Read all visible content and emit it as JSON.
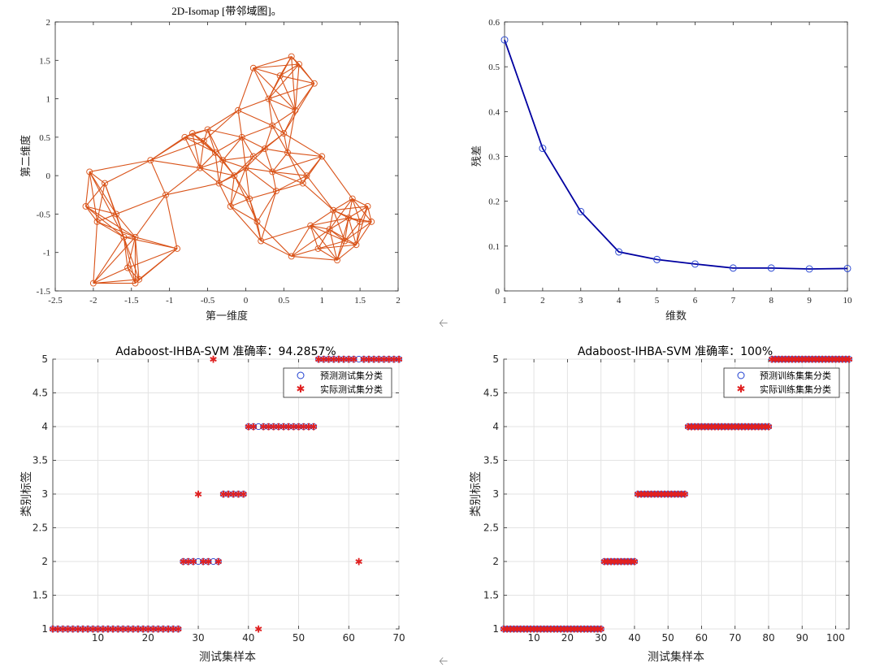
{
  "chart_data": [
    {
      "type": "network-scatter",
      "title": "2D-Isomap [带邻域图]。",
      "xlabel": "第一维度",
      "ylabel": "第二维度",
      "xlim": [
        -2.5,
        2
      ],
      "ylim": [
        -1.5,
        2
      ],
      "xticks": [
        "-2.5",
        "-2",
        "-1.5",
        "-1",
        "-0.5",
        "0",
        "0.5",
        "1",
        "1.5",
        "2"
      ],
      "yticks": [
        "-1.5",
        "-1",
        "-0.5",
        "0",
        "0.5",
        "1",
        "1.5",
        "2"
      ],
      "color": "#D95319",
      "nodes": [
        [
          -2.05,
          0.05
        ],
        [
          -2.1,
          -0.4
        ],
        [
          -2.0,
          -1.4
        ],
        [
          -1.95,
          -0.6
        ],
        [
          -1.85,
          -0.1
        ],
        [
          -1.7,
          -0.5
        ],
        [
          -1.6,
          -0.8
        ],
        [
          -1.55,
          -1.2
        ],
        [
          -1.45,
          -0.8
        ],
        [
          -1.45,
          -1.4
        ],
        [
          -1.4,
          -1.35
        ],
        [
          -1.25,
          0.2
        ],
        [
          -1.05,
          -0.25
        ],
        [
          -0.9,
          -0.95
        ],
        [
          -0.8,
          0.5
        ],
        [
          -0.7,
          0.55
        ],
        [
          -0.6,
          0.1
        ],
        [
          -0.55,
          0.45
        ],
        [
          -0.5,
          0.6
        ],
        [
          -0.4,
          0.3
        ],
        [
          -0.35,
          -0.1
        ],
        [
          -0.3,
          0.2
        ],
        [
          -0.2,
          -0.4
        ],
        [
          -0.1,
          0.85
        ],
        [
          -0.05,
          0.5
        ],
        [
          0.0,
          0.1
        ],
        [
          0.05,
          -0.3
        ],
        [
          0.1,
          1.4
        ],
        [
          0.15,
          -0.6
        ],
        [
          0.2,
          -0.85
        ],
        [
          0.25,
          0.35
        ],
        [
          0.3,
          1.0
        ],
        [
          0.35,
          0.65
        ],
        [
          0.4,
          -0.2
        ],
        [
          0.45,
          1.3
        ],
        [
          0.55,
          0.3
        ],
        [
          0.6,
          1.55
        ],
        [
          0.6,
          -1.05
        ],
        [
          0.65,
          0.85
        ],
        [
          0.7,
          1.45
        ],
        [
          0.75,
          -0.1
        ],
        [
          0.8,
          0.0
        ],
        [
          0.85,
          -0.65
        ],
        [
          0.9,
          1.2
        ],
        [
          0.95,
          -0.95
        ],
        [
          1.0,
          0.25
        ],
        [
          1.1,
          -0.7
        ],
        [
          1.15,
          -0.45
        ],
        [
          1.2,
          -1.1
        ],
        [
          1.3,
          -0.85
        ],
        [
          1.35,
          -0.55
        ],
        [
          1.4,
          -0.3
        ],
        [
          1.45,
          -0.9
        ],
        [
          1.5,
          -0.6
        ],
        [
          1.6,
          -0.4
        ],
        [
          1.65,
          -0.6
        ],
        [
          0.1,
          0.25
        ],
        [
          -0.15,
          0.0
        ],
        [
          0.35,
          0.05
        ],
        [
          0.5,
          0.55
        ]
      ]
    },
    {
      "type": "line",
      "xlabel": "维数",
      "ylabel": "残差",
      "x": [
        1,
        2,
        3,
        4,
        5,
        6,
        7,
        8,
        9,
        10
      ],
      "y": [
        0.56,
        0.318,
        0.177,
        0.087,
        0.07,
        0.06,
        0.051,
        0.051,
        0.049,
        0.05
      ],
      "xlim": [
        1,
        10
      ],
      "ylim": [
        0,
        0.6
      ],
      "xticks": [
        "1",
        "2",
        "3",
        "4",
        "5",
        "6",
        "7",
        "8",
        "9",
        "10"
      ],
      "yticks": [
        "0",
        "0.1",
        "0.2",
        "0.3",
        "0.4",
        "0.5",
        "0.6"
      ],
      "color": "#0000A0"
    },
    {
      "type": "scatter",
      "title": "Adaboost-IHBA-SVM 准确率：94.2857%",
      "xlabel": "测试集样本",
      "ylabel": "类别标签",
      "xlim": [
        1,
        70
      ],
      "ylim": [
        1,
        5
      ],
      "xticks": [
        "10",
        "20",
        "30",
        "40",
        "50",
        "60",
        "70"
      ],
      "yticks": [
        "1",
        "1.5",
        "2",
        "2.5",
        "3",
        "3.5",
        "4",
        "4.5",
        "5"
      ],
      "grid": true,
      "legend_position": "top-right",
      "legend": [
        "预测测试集分类",
        "实际测试集分类"
      ],
      "predicted": [
        1,
        1,
        1,
        1,
        1,
        1,
        1,
        1,
        1,
        1,
        1,
        1,
        1,
        1,
        1,
        1,
        1,
        1,
        1,
        1,
        1,
        1,
        1,
        1,
        1,
        1,
        2,
        2,
        2,
        2,
        2,
        2,
        2,
        2,
        3,
        3,
        3,
        3,
        3,
        4,
        4,
        4,
        4,
        4,
        4,
        4,
        4,
        4,
        4,
        4,
        4,
        4,
        4,
        5,
        5,
        5,
        5,
        5,
        5,
        5,
        5,
        5,
        5,
        5,
        5,
        5,
        5,
        5,
        5,
        5
      ],
      "actual": [
        1,
        1,
        1,
        1,
        1,
        1,
        1,
        1,
        1,
        1,
        1,
        1,
        1,
        1,
        1,
        1,
        1,
        1,
        1,
        1,
        1,
        1,
        1,
        1,
        1,
        1,
        2,
        2,
        2,
        3,
        2,
        2,
        5,
        2,
        3,
        3,
        3,
        3,
        3,
        4,
        4,
        1,
        4,
        4,
        4,
        4,
        4,
        4,
        4,
        4,
        4,
        4,
        4,
        5,
        5,
        5,
        5,
        5,
        5,
        5,
        5,
        2,
        5,
        5,
        5,
        5,
        5,
        5,
        5,
        5
      ],
      "predicted_color": "#1F3FD0",
      "actual_color": "#E02020"
    },
    {
      "type": "scatter",
      "title": "Adaboost-IHBA-SVM 准确率：100%",
      "xlabel": "测试集样本",
      "ylabel": "类别标签",
      "xlim": [
        1,
        104
      ],
      "ylim": [
        1,
        5
      ],
      "xticks": [
        "10",
        "20",
        "30",
        "40",
        "50",
        "60",
        "70",
        "80",
        "90",
        "100"
      ],
      "yticks": [
        "1",
        "1.5",
        "2",
        "2.5",
        "3",
        "3.5",
        "4",
        "4.5",
        "5"
      ],
      "grid": true,
      "legend_position": "top-right",
      "legend": [
        "预测训练集集分类",
        "实际训练集集分类"
      ],
      "class_ranges": [
        [
          1,
          30,
          1
        ],
        [
          31,
          40,
          2
        ],
        [
          41,
          55,
          3
        ],
        [
          56,
          80,
          4
        ],
        [
          81,
          104,
          5
        ]
      ],
      "predicted_color": "#1F3FD0",
      "actual_color": "#E02020"
    }
  ],
  "ui": {
    "arrow_top": "🡠",
    "arrow_bottom": "🡠"
  }
}
